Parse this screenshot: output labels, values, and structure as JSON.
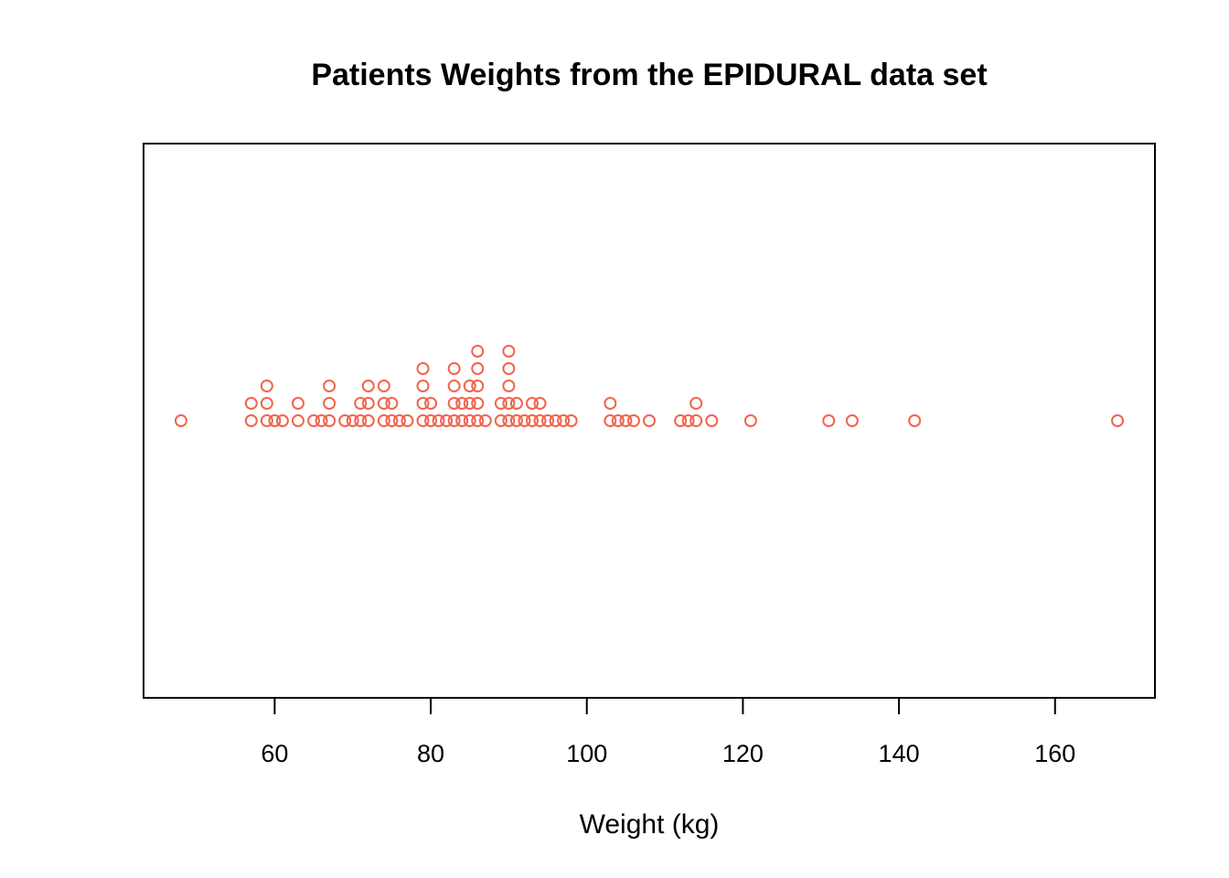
{
  "chart_data": {
    "type": "scatter",
    "style": "stacked dot plot (stripchart, method stack)",
    "title": "Patients Weights from the EPIDURAL data set",
    "xlabel": "Weight (kg)",
    "ylabel": "",
    "xticks": [
      60,
      80,
      100,
      120,
      140,
      160
    ],
    "xlim": [
      43.2,
      172.8
    ],
    "grid": false,
    "legend": "none",
    "point_color": "#f0654e",
    "point_shape": "open-circle",
    "values": [
      48,
      57,
      57,
      59,
      59,
      59,
      60,
      61,
      63,
      63,
      65,
      66,
      67,
      67,
      67,
      69,
      70,
      71,
      71,
      72,
      72,
      72,
      74,
      74,
      74,
      75,
      75,
      76,
      77,
      79,
      79,
      79,
      79,
      80,
      80,
      81,
      82,
      83,
      83,
      83,
      83,
      84,
      84,
      85,
      85,
      85,
      86,
      86,
      86,
      86,
      86,
      87,
      89,
      89,
      90,
      90,
      90,
      90,
      90,
      91,
      91,
      92,
      93,
      93,
      94,
      94,
      95,
      96,
      97,
      98,
      103,
      103,
      104,
      105,
      106,
      108,
      112,
      113,
      114,
      114,
      116,
      121,
      131,
      134,
      142,
      168
    ]
  }
}
